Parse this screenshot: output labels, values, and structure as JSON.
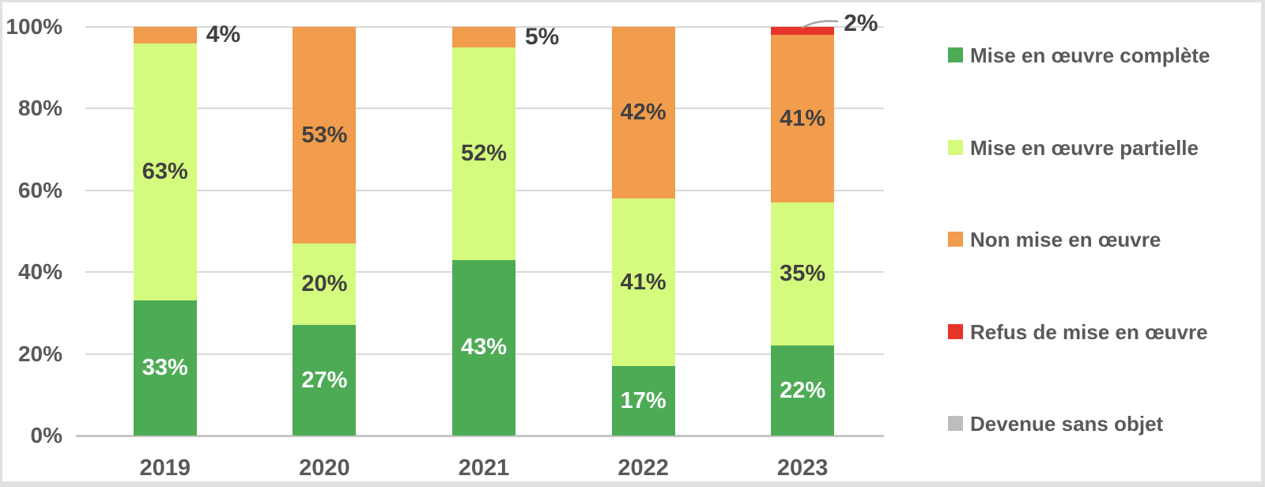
{
  "chart": {
    "background": "#FFFFFF",
    "border_color": "#E1E1E1",
    "grid_color": "#D9D9D9",
    "axis_line_color": "#C6C6C6",
    "axis_text_color": "#595959",
    "dark_label_color": "#404040",
    "white_label_color": "#FFFFFF",
    "leader_line_color": "#A6A6A6"
  },
  "chart_data": {
    "type": "bar",
    "stacked": true,
    "percent_scale": true,
    "title": "",
    "xlabel": "",
    "ylabel": "",
    "categories": [
      "2019",
      "2020",
      "2021",
      "2022",
      "2023"
    ],
    "series": [
      {
        "name": "Mise en œuvre complète",
        "color": "#4DAB55",
        "label_color": "#FFFFFF",
        "values": [
          33,
          27,
          43,
          17,
          22
        ],
        "small_label_style": "right"
      },
      {
        "name": "Mise en œuvre partielle",
        "color": "#D4FA7E",
        "label_color": "#404040",
        "values": [
          63,
          20,
          52,
          41,
          35
        ],
        "small_label_style": "right"
      },
      {
        "name": "Non mise en œuvre",
        "color": "#F29C4D",
        "label_color": "#404040",
        "values": [
          4,
          53,
          5,
          42,
          41
        ],
        "small_label_style": "right"
      },
      {
        "name": "Refus de mise en œuvre",
        "color": "#E8352A",
        "label_color": "#404040",
        "values": [
          0,
          0,
          0,
          0,
          2
        ],
        "small_label_style": "callout"
      },
      {
        "name": "Devenue sans objet",
        "color": "#BDBDBD",
        "label_color": "#404040",
        "values": [
          0,
          0,
          0,
          0,
          0
        ],
        "small_label_style": "right"
      }
    ],
    "y_ticks": [
      {
        "value": 0,
        "label": "0%"
      },
      {
        "value": 20,
        "label": "20%"
      },
      {
        "value": 40,
        "label": "40%"
      },
      {
        "value": 60,
        "label": "60%"
      },
      {
        "value": 80,
        "label": "80%"
      },
      {
        "value": 100,
        "label": "100%"
      }
    ],
    "ylim": [
      0,
      100
    ],
    "value_suffix": "%",
    "grid": true,
    "legend_position": "right"
  }
}
